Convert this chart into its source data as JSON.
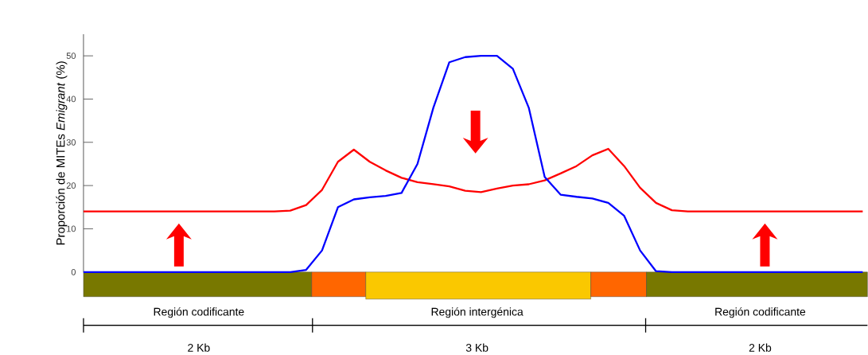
{
  "chart_data": {
    "type": "line",
    "ylabel": "Proporción de MITEs *Emigrant* (%)",
    "categories": [
      null,
      null,
      null,
      null,
      null,
      null,
      null,
      null,
      null,
      null,
      null,
      null,
      null,
      null,
      null,
      null,
      null,
      null,
      null,
      null,
      null,
      null,
      null,
      null,
      null,
      null,
      null,
      null,
      null,
      null,
      null,
      null,
      null,
      null,
      null,
      null,
      null,
      null,
      null,
      null,
      null,
      null,
      null,
      null,
      null,
      null,
      null,
      null,
      null,
      null
    ],
    "series": [
      {
        "color": "#ff0000",
        "values": [
          14,
          14,
          14,
          14,
          14,
          14,
          14,
          14,
          14,
          14,
          14,
          14,
          14,
          14.2,
          15.5,
          19,
          25.5,
          28.3,
          25.5,
          23.5,
          21.8,
          20.8,
          20.3,
          19.8,
          18.8,
          18.5,
          19.3,
          20,
          20.3,
          21.2,
          22.8,
          24.5,
          27,
          28.5,
          24.5,
          19.5,
          16,
          14.3,
          14,
          14,
          14,
          14,
          14,
          14,
          14,
          14,
          14,
          14,
          14,
          14
        ]
      },
      {
        "color": "#0000ff",
        "values": [
          0,
          0,
          0,
          0,
          0,
          0,
          0,
          0,
          0,
          0,
          0,
          0,
          0,
          0,
          0.5,
          5,
          15,
          16.8,
          17.3,
          17.6,
          18.3,
          25,
          38,
          48.5,
          49.7,
          50,
          50,
          47,
          38,
          22,
          17.9,
          17.4,
          17,
          16,
          13,
          5,
          0.2,
          0,
          0,
          0,
          0,
          0,
          0,
          0,
          0,
          0,
          0,
          0,
          0,
          0
        ]
      }
    ],
    "ylim": [
      0,
      55
    ],
    "yticks": [
      0,
      10,
      20,
      30,
      40,
      50
    ],
    "annotations": [
      "Región codificante",
      "Región intergénica",
      "Región codificante",
      "2 Kb",
      "3 Kb",
      "2 Kb"
    ]
  }
}
